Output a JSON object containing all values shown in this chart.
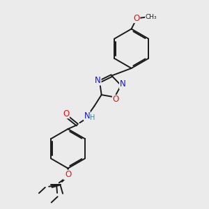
{
  "background_color": "#ebebeb",
  "bond_color": "#1a1a1a",
  "bond_width": 1.4,
  "atom_colors": {
    "N": "#1010ee",
    "O": "#ee1010",
    "H": "#3a8a8a",
    "C": "#1a1a1a"
  },
  "font_size_atom": 8.5,
  "font_size_small": 7.0
}
